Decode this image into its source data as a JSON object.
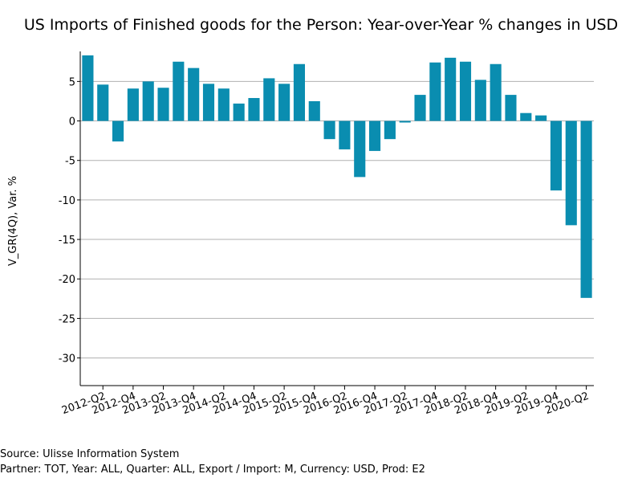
{
  "source_line": "Source: Ulisse Information System",
  "filter_line": "Partner: TOT, Year: ALL, Quarter: ALL, Export / Import: M, Currency: USD, Prod: E2",
  "chart_data": {
    "type": "bar",
    "title": "US Imports of Finished goods for the Person: Year-over-Year % changes in USD",
    "xlabel": "",
    "ylabel": "V_GR(4Q), Var. %",
    "ylim": [
      -33.5,
      8.8
    ],
    "yticks": [
      5,
      0,
      -5,
      -10,
      -15,
      -20,
      -25,
      -30
    ],
    "grid": true,
    "bar_color": "#0a8db0",
    "categories": [
      "2012-Q1",
      "2012-Q2",
      "2012-Q3",
      "2012-Q4",
      "2013-Q1",
      "2013-Q2",
      "2013-Q3",
      "2013-Q4",
      "2014-Q1",
      "2014-Q2",
      "2014-Q3",
      "2014-Q4",
      "2015-Q1",
      "2015-Q2",
      "2015-Q3",
      "2015-Q4",
      "2016-Q1",
      "2016-Q2",
      "2016-Q3",
      "2016-Q4",
      "2017-Q1",
      "2017-Q2",
      "2017-Q3",
      "2017-Q4",
      "2018-Q1",
      "2018-Q2",
      "2018-Q3",
      "2018-Q4",
      "2019-Q1",
      "2019-Q2",
      "2019-Q3",
      "2019-Q4",
      "2020-Q1",
      "2020-Q2"
    ],
    "tick_labels": [
      "2012-Q2",
      "2012-Q4",
      "2013-Q2",
      "2013-Q4",
      "2014-Q2",
      "2014-Q4",
      "2015-Q2",
      "2015-Q4",
      "2016-Q2",
      "2016-Q4",
      "2017-Q2",
      "2017-Q4",
      "2018-Q2",
      "2018-Q4",
      "2019-Q2",
      "2019-Q4",
      "2020-Q2"
    ],
    "values": [
      8.3,
      4.6,
      -2.6,
      4.1,
      5.0,
      4.2,
      7.5,
      6.7,
      4.7,
      4.1,
      2.2,
      2.9,
      5.4,
      4.7,
      7.2,
      2.5,
      -2.3,
      -3.6,
      -7.1,
      -3.8,
      -2.3,
      -0.2,
      3.3,
      7.4,
      8.0,
      7.5,
      5.2,
      7.2,
      3.3,
      1.0,
      0.7,
      -8.8,
      -13.2,
      -22.4
    ]
  }
}
